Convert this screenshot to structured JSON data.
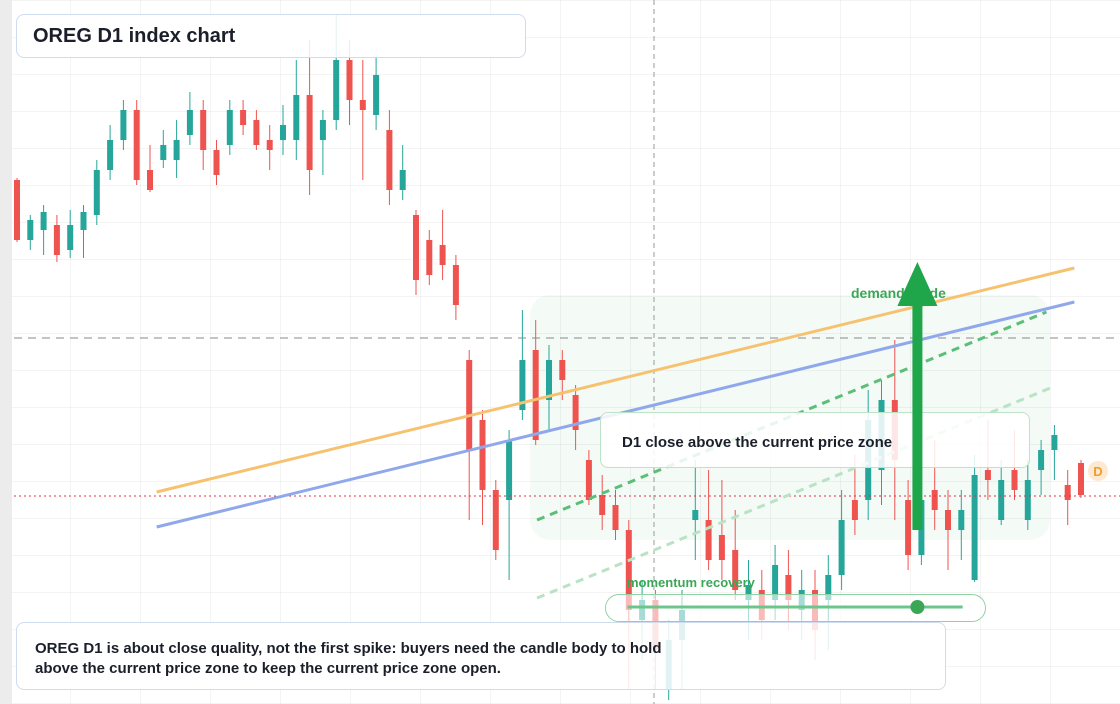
{
  "chart_data": {
    "type": "candlestick",
    "title": "OREG D1 index chart",
    "ylim": [
      0,
      704
    ],
    "up_color": "#26a69a",
    "down_color": "#ef5350",
    "ohlc": [
      [
        524,
        526,
        462,
        464
      ],
      [
        464,
        489,
        454,
        484
      ],
      [
        474,
        499,
        449,
        492
      ],
      [
        479,
        489,
        442,
        449
      ],
      [
        454,
        494,
        446,
        479
      ],
      [
        474,
        499,
        446,
        492
      ],
      [
        489,
        544,
        479,
        534
      ],
      [
        534,
        579,
        524,
        564
      ],
      [
        564,
        604,
        554,
        594
      ],
      [
        594,
        604,
        519,
        524
      ],
      [
        534,
        559,
        512,
        514
      ],
      [
        544,
        574,
        536,
        559
      ],
      [
        544,
        584,
        526,
        564
      ],
      [
        569,
        612,
        559,
        594
      ],
      [
        594,
        604,
        534,
        554
      ],
      [
        554,
        564,
        519,
        529
      ],
      [
        559,
        604,
        549,
        594
      ],
      [
        594,
        604,
        569,
        579
      ],
      [
        584,
        594,
        554,
        559
      ],
      [
        564,
        579,
        534,
        554
      ],
      [
        564,
        599,
        549,
        579
      ],
      [
        564,
        644,
        544,
        609
      ],
      [
        609,
        664,
        509,
        534
      ],
      [
        564,
        594,
        529,
        584
      ],
      [
        584,
        689,
        574,
        644
      ],
      [
        644,
        664,
        579,
        604
      ],
      [
        604,
        644,
        524,
        594
      ],
      [
        589,
        649,
        574,
        629
      ],
      [
        574,
        594,
        499,
        514
      ],
      [
        514,
        559,
        504,
        534
      ],
      [
        489,
        494,
        409,
        424
      ],
      [
        464,
        474,
        419,
        429
      ],
      [
        459,
        494,
        424,
        439
      ],
      [
        439,
        449,
        384,
        399
      ],
      [
        344,
        354,
        184,
        254
      ],
      [
        284,
        294,
        179,
        214
      ],
      [
        214,
        224,
        144,
        154
      ],
      [
        204,
        274,
        124,
        264
      ],
      [
        294,
        394,
        284,
        344
      ],
      [
        354,
        384,
        259,
        264
      ],
      [
        304,
        359,
        274,
        344
      ],
      [
        344,
        354,
        304,
        324
      ],
      [
        309,
        319,
        254,
        274
      ],
      [
        244,
        254,
        199,
        204
      ],
      [
        209,
        229,
        174,
        189
      ],
      [
        199,
        214,
        164,
        174
      ],
      [
        174,
        184,
        14,
        94
      ],
      [
        84,
        124,
        44,
        104
      ],
      [
        104,
        114,
        14,
        54
      ],
      [
        14,
        84,
        4,
        64
      ],
      [
        64,
        114,
        14,
        94
      ],
      [
        184,
        244,
        144,
        194
      ],
      [
        184,
        234,
        134,
        144
      ],
      [
        169,
        224,
        124,
        144
      ],
      [
        154,
        194,
        104,
        114
      ],
      [
        104,
        144,
        64,
        119
      ],
      [
        114,
        134,
        64,
        84
      ],
      [
        104,
        159,
        84,
        139
      ],
      [
        129,
        154,
        74,
        104
      ],
      [
        94,
        134,
        64,
        114
      ],
      [
        114,
        134,
        44,
        74
      ],
      [
        104,
        149,
        54,
        129
      ],
      [
        129,
        214,
        114,
        184
      ],
      [
        204,
        249,
        169,
        184
      ],
      [
        204,
        314,
        184,
        284
      ],
      [
        234,
        324,
        199,
        304
      ],
      [
        304,
        364,
        184,
        244
      ],
      [
        204,
        224,
        134,
        149
      ],
      [
        149,
        284,
        139,
        204
      ],
      [
        214,
        264,
        174,
        194
      ],
      [
        194,
        214,
        134,
        174
      ],
      [
        174,
        214,
        144,
        194
      ],
      [
        124,
        249,
        122,
        229
      ],
      [
        234,
        284,
        204,
        224
      ],
      [
        184,
        244,
        179,
        224
      ],
      [
        234,
        274,
        204,
        214
      ],
      [
        184,
        244,
        174,
        224
      ],
      [
        234,
        264,
        209,
        254
      ],
      [
        254,
        279,
        224,
        269
      ],
      [
        219,
        234,
        179,
        204
      ],
      [
        241,
        244,
        206,
        209
      ]
    ],
    "trendlines": [
      {
        "color": "#f6c270",
        "dash": "solid",
        "start": [
          10.5,
          212
        ],
        "end": [
          79.5,
          436
        ]
      },
      {
        "color": "#8fa8ec",
        "dash": "solid",
        "start": [
          10.5,
          177
        ],
        "end": [
          79.5,
          402
        ]
      },
      {
        "color": "#5cbf78",
        "dash": "dashed",
        "start": [
          39.1,
          184
        ],
        "end": [
          77.4,
          392
        ]
      },
      {
        "color": "#b9e3c4",
        "dash": "dashed",
        "start": [
          39.1,
          106
        ],
        "end": [
          77.7,
          316
        ]
      }
    ],
    "levels": [
      {
        "price": 366,
        "color": "#8a8a8a",
        "dash": "dashed"
      },
      {
        "price": 208,
        "color": "#e0314a",
        "dash": "dotted"
      }
    ],
    "arrow": {
      "index": 67.7,
      "from": 174,
      "to": 442,
      "color": "#1fa64a"
    },
    "momentum": {
      "price": 97,
      "start": 45.9,
      "end": 71.1,
      "dot": 67.7,
      "color": "#6cc58a"
    },
    "annotations": {
      "guide_label": "demand guide",
      "zone_label": "D1 close above the current price zone",
      "momentum_label": "momentum recovery",
      "note": "OREG D1 is about close quality, not the first spike: buyers need the candle body to hold above the current price zone to keep the current price zone open.",
      "marker": "D"
    }
  }
}
